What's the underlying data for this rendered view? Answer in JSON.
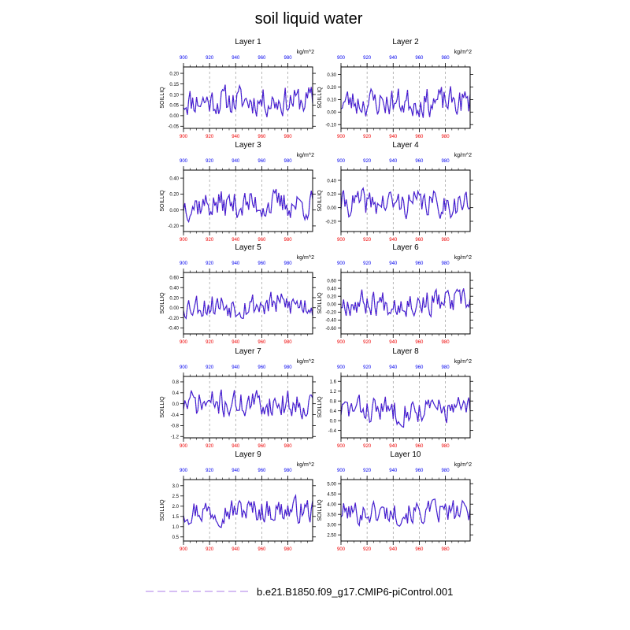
{
  "figure": {
    "title": "soil liquid water",
    "legend_label": "b.e21.B1850.f09_g17.CMIP6-piControl.001"
  },
  "colors": {
    "line": "#2a1fd6",
    "line_alt": "#c21faa",
    "top_ticks": "#0000ee",
    "bottom_ticks": "#ee0000",
    "legend_dash": "#c9a8f0",
    "frame": "#000000",
    "refline": "#888888"
  },
  "chart_data": [
    {
      "type": "line",
      "title": "Layer 1",
      "units": "kg/m^2",
      "ylabel": "SOILLIQ",
      "xlim": [
        900,
        999
      ],
      "ylim": [
        -0.06,
        0.23
      ],
      "yticks": [
        -0.05,
        0.0,
        0.05,
        0.1,
        0.15,
        0.2
      ],
      "ytick_labels": [
        "-0.05",
        "0.00",
        "0.05",
        "0.10",
        "0.15",
        "0.20"
      ],
      "top_xticks": [
        900,
        920,
        940,
        960,
        980
      ],
      "bottom_xticks": [
        900,
        920,
        940,
        960,
        980
      ],
      "amp": 0.085,
      "mean": 0.07,
      "seed": 11
    },
    {
      "type": "line",
      "title": "Layer 2",
      "units": "kg/m^2",
      "ylabel": "SOILLIQ",
      "xlim": [
        900,
        999
      ],
      "ylim": [
        -0.13,
        0.36
      ],
      "yticks": [
        -0.1,
        0.0,
        0.1,
        0.2,
        0.3
      ],
      "ytick_labels": [
        "-0.10",
        "0.00",
        "0.10",
        "0.20",
        "0.30"
      ],
      "top_xticks": [
        900,
        920,
        940,
        960,
        980
      ],
      "bottom_xticks": [
        900,
        920,
        940,
        960,
        980
      ],
      "amp": 0.14,
      "mean": 0.08,
      "seed": 23
    },
    {
      "type": "line",
      "title": "Layer 3",
      "units": "kg/m^2",
      "ylabel": "SOILLIQ",
      "xlim": [
        900,
        999
      ],
      "ylim": [
        -0.27,
        0.5
      ],
      "yticks": [
        -0.2,
        0.0,
        0.2,
        0.4
      ],
      "ytick_labels": [
        "-0.20",
        "0.00",
        "0.20",
        "0.40"
      ],
      "top_xticks": [
        900,
        920,
        940,
        960,
        980
      ],
      "bottom_xticks": [
        900,
        920,
        940,
        960,
        980
      ],
      "amp": 0.22,
      "mean": 0.07,
      "seed": 37
    },
    {
      "type": "line",
      "title": "Layer 4",
      "units": "kg/m^2",
      "ylabel": "SOILLIQ",
      "xlim": [
        900,
        999
      ],
      "ylim": [
        -0.35,
        0.55
      ],
      "yticks": [
        -0.2,
        0.0,
        0.2,
        0.4
      ],
      "ytick_labels": [
        "-0.20",
        "0.00",
        "0.20",
        "0.40"
      ],
      "top_xticks": [
        900,
        920,
        940,
        960,
        980
      ],
      "bottom_xticks": [
        900,
        920,
        940,
        960,
        980
      ],
      "amp": 0.24,
      "mean": 0.06,
      "seed": 41
    },
    {
      "type": "line",
      "title": "Layer 5",
      "units": "kg/m^2",
      "ylabel": "SOILLIQ",
      "xlim": [
        900,
        999
      ],
      "ylim": [
        -0.52,
        0.7
      ],
      "yticks": [
        -0.4,
        -0.2,
        0.0,
        0.2,
        0.4,
        0.6
      ],
      "ytick_labels": [
        "-0.40",
        "-0.20",
        "0.00",
        "0.20",
        "0.40",
        "0.60"
      ],
      "top_xticks": [
        900,
        920,
        940,
        960,
        980
      ],
      "bottom_xticks": [
        900,
        920,
        940,
        960,
        980
      ],
      "amp": 0.32,
      "mean": 0.06,
      "seed": 53
    },
    {
      "type": "line",
      "title": "Layer 6",
      "units": "kg/m^2",
      "ylabel": "SOILLIQ",
      "xlim": [
        900,
        999
      ],
      "ylim": [
        -0.75,
        0.8
      ],
      "yticks": [
        -0.6,
        -0.4,
        -0.2,
        0.0,
        0.2,
        0.4,
        0.6
      ],
      "ytick_labels": [
        "-0.60",
        "-0.40",
        "-0.20",
        "0.00",
        "0.20",
        "0.40",
        "0.60"
      ],
      "top_xticks": [
        900,
        920,
        940,
        960,
        980
      ],
      "bottom_xticks": [
        900,
        920,
        940,
        960,
        980
      ],
      "amp": 0.4,
      "mean": 0.05,
      "seed": 67
    },
    {
      "type": "line",
      "title": "Layer 7",
      "units": "kg/m^2",
      "ylabel": "SOILLIQ",
      "xlim": [
        900,
        999
      ],
      "ylim": [
        -1.25,
        1.0
      ],
      "yticks": [
        -1.2,
        -0.8,
        -0.4,
        0.0,
        0.4,
        0.8
      ],
      "ytick_labels": [
        "-1.2",
        "-0.8",
        "-0.4",
        "0.0",
        "0.4",
        "0.8"
      ],
      "top_xticks": [
        900,
        920,
        940,
        960,
        980
      ],
      "bottom_xticks": [
        900,
        920,
        940,
        960,
        980
      ],
      "amp": 0.6,
      "mean": 0.0,
      "seed": 71
    },
    {
      "type": "line",
      "title": "Layer 8",
      "units": "kg/m^2",
      "ylabel": "SOILLIQ",
      "xlim": [
        900,
        999
      ],
      "ylim": [
        -0.7,
        1.8
      ],
      "yticks": [
        -0.4,
        0.0,
        0.4,
        0.8,
        1.2,
        1.6
      ],
      "ytick_labels": [
        "-0.4",
        "0.0",
        "0.4",
        "0.8",
        "1.2",
        "1.6"
      ],
      "top_xticks": [
        900,
        920,
        940,
        960,
        980
      ],
      "bottom_xticks": [
        900,
        920,
        940,
        960,
        980
      ],
      "amp": 0.65,
      "mean": 0.45,
      "seed": 83
    },
    {
      "type": "line",
      "title": "Layer 9",
      "units": "kg/m^2",
      "ylabel": "SOILLIQ",
      "xlim": [
        900,
        999
      ],
      "ylim": [
        0.3,
        3.3
      ],
      "yticks": [
        0.5,
        1.0,
        1.5,
        2.0,
        2.5,
        3.0
      ],
      "ytick_labels": [
        "0.5",
        "1.0",
        "1.5",
        "2.0",
        "2.5",
        "3.0"
      ],
      "top_xticks": [
        900,
        920,
        940,
        960,
        980
      ],
      "bottom_xticks": [
        900,
        920,
        940,
        960,
        980
      ],
      "amp": 0.75,
      "mean": 1.8,
      "seed": 97
    },
    {
      "type": "line",
      "title": "Layer 10",
      "units": "kg/m^2",
      "ylabel": "SOILLIQ",
      "xlim": [
        900,
        999
      ],
      "ylim": [
        2.2,
        5.2
      ],
      "yticks": [
        2.5,
        3.0,
        3.5,
        4.0,
        4.5,
        5.0
      ],
      "ytick_labels": [
        "2.50",
        "3.00",
        "3.50",
        "4.00",
        "4.50",
        "5.00"
      ],
      "top_xticks": [
        900,
        920,
        940,
        960,
        980
      ],
      "bottom_xticks": [
        900,
        920,
        940,
        960,
        980
      ],
      "amp": 0.7,
      "mean": 3.6,
      "seed": 101
    }
  ]
}
